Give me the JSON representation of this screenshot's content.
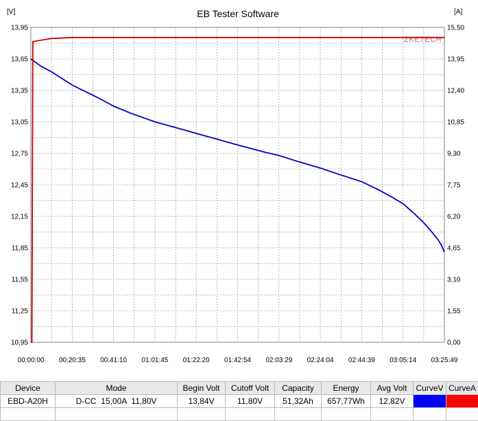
{
  "chart_data": {
    "type": "line",
    "title": "EB Tester Software",
    "watermark": "ZKETECH",
    "y_left_unit": "[V]",
    "y_right_unit": "[A]",
    "ylim_left": [
      10.95,
      13.95
    ],
    "ylim_right": [
      0.0,
      15.5
    ],
    "xlim_seconds": [
      0,
      12349
    ],
    "y_left_ticks": [
      "13,95",
      "13,65",
      "13,35",
      "13,05",
      "12,75",
      "12,45",
      "12,15",
      "11,85",
      "11,55",
      "11,25",
      "10,95"
    ],
    "y_right_ticks": [
      "15,50",
      "13,95",
      "12,40",
      "10,85",
      "9,30",
      "7,75",
      "6,20",
      "4,65",
      "3,10",
      "1,55",
      "0,00"
    ],
    "x_ticks": [
      "00:00:00",
      "00:20:35",
      "00:41:10",
      "01:01:45",
      "01:22:20",
      "01:42:54",
      "02:03:29",
      "02:24:04",
      "02:44:39",
      "03:05:14",
      "03:25:49"
    ],
    "grid": true,
    "series": [
      {
        "name": "CurveV",
        "axis": "left",
        "color": "#0000c8",
        "x_seconds": [
          0,
          300,
          600,
          1235,
          2000,
          2470,
          3000,
          3705,
          4500,
          4940,
          5500,
          6174,
          7000,
          7409,
          8000,
          8644,
          9200,
          9879,
          10400,
          10800,
          11114,
          11400,
          11700,
          11950,
          12150,
          12250,
          12349
        ],
        "values": [
          13.65,
          13.58,
          13.53,
          13.4,
          13.28,
          13.2,
          13.13,
          13.05,
          12.98,
          12.94,
          12.89,
          12.83,
          12.76,
          12.73,
          12.67,
          12.61,
          12.55,
          12.48,
          12.4,
          12.33,
          12.27,
          12.19,
          12.1,
          12.01,
          11.93,
          11.88,
          11.81
        ]
      },
      {
        "name": "CurveA",
        "axis": "right",
        "color": "#cc0000",
        "x_seconds": [
          0,
          30,
          60,
          600,
          1235,
          12349
        ],
        "values": [
          0.0,
          0.0,
          14.8,
          14.95,
          15.0,
          15.0
        ]
      }
    ]
  },
  "results": {
    "headers": [
      "Device",
      "Mode",
      "Begin Volt",
      "Cutoff Volt",
      "Capacity",
      "Energy",
      "Avg Volt",
      "CurveV",
      "CurveA"
    ],
    "row": [
      "EBD-A20H",
      "D-CC  15,00A  11,80V",
      "13,84V",
      "11,80V",
      "51,32Ah",
      "657,77Wh",
      "12,82V"
    ],
    "swatch_v_color": "#0000ff",
    "swatch_a_color": "#ff0000"
  }
}
